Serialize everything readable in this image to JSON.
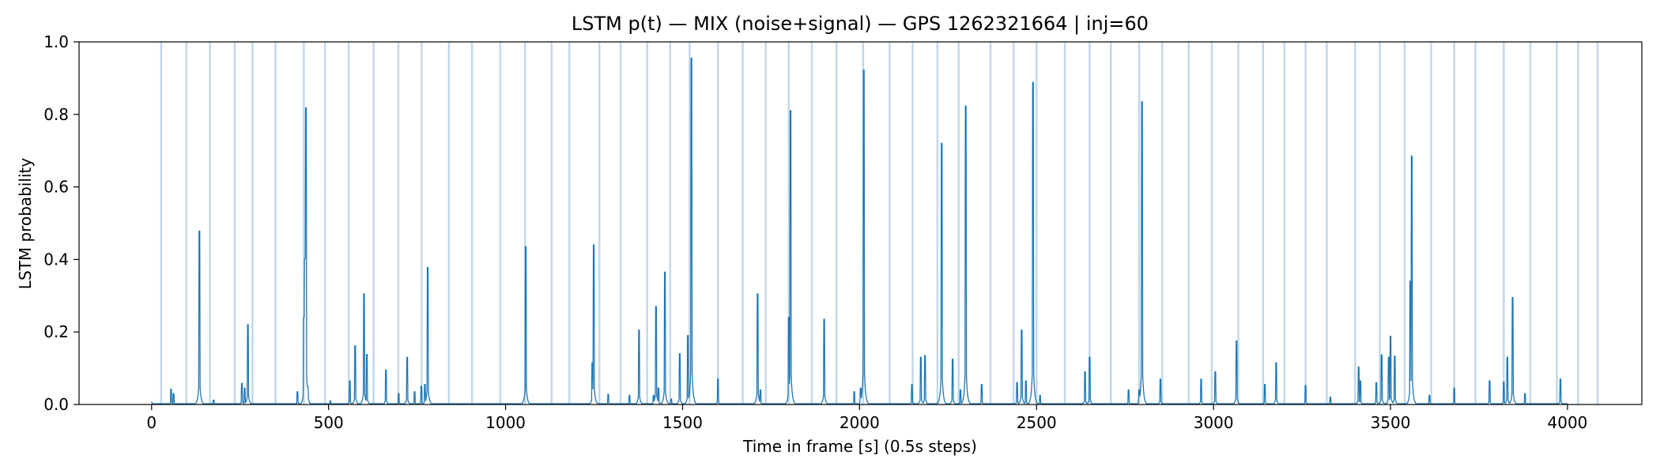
{
  "chart_data": {
    "type": "line",
    "title": "LSTM p(t) — MIX (noise+signal) — GPS 1262321664 | inj=60",
    "xlabel": "Time in frame [s] (0.5s steps)",
    "ylabel": "LSTM probability",
    "xlim": [
      -205,
      4210
    ],
    "ylim": [
      0,
      1.0
    ],
    "x_ticks": [
      "0",
      "500",
      "1000",
      "1500",
      "2000",
      "2500",
      "3000",
      "3500",
      "4000"
    ],
    "y_ticks": [
      "0.0",
      "0.2",
      "0.4",
      "0.6",
      "0.8",
      "1.0"
    ],
    "grid": false,
    "legend": "none",
    "series_color": "#1f77b4",
    "marker_color": "#aecbe6",
    "baseline": 0.002,
    "injection_times": [
      27,
      98,
      165,
      235,
      285,
      350,
      430,
      490,
      557,
      627,
      697,
      763,
      840,
      905,
      985,
      1055,
      1130,
      1180,
      1265,
      1325,
      1400,
      1465,
      1520,
      1600,
      1670,
      1735,
      1800,
      1865,
      1935,
      2010,
      2085,
      2150,
      2220,
      2280,
      2370,
      2435,
      2500,
      2580,
      2650,
      2710,
      2790,
      2855,
      2930,
      2995,
      3070,
      3140,
      3200,
      3260,
      3320,
      3400,
      3470,
      3540,
      3615,
      3680,
      3740,
      3820,
      3895,
      3970,
      4030,
      4085
    ],
    "peaks": [
      [
        0,
        0.006
      ],
      [
        55,
        0.042
      ],
      [
        62,
        0.03
      ],
      [
        175,
        0.012
      ],
      [
        135,
        0.478
      ],
      [
        255,
        0.058
      ],
      [
        263,
        0.045
      ],
      [
        272,
        0.22
      ],
      [
        412,
        0.035
      ],
      [
        430,
        0.24
      ],
      [
        433,
        0.402
      ],
      [
        436,
        0.818
      ],
      [
        441,
        0.05
      ],
      [
        505,
        0.01
      ],
      [
        560,
        0.065
      ],
      [
        575,
        0.162
      ],
      [
        600,
        0.305
      ],
      [
        608,
        0.138
      ],
      [
        662,
        0.095
      ],
      [
        698,
        0.03
      ],
      [
        722,
        0.13
      ],
      [
        743,
        0.035
      ],
      [
        762,
        0.05
      ],
      [
        772,
        0.055
      ],
      [
        780,
        0.378
      ],
      [
        1057,
        0.435
      ],
      [
        1245,
        0.115
      ],
      [
        1249,
        0.44
      ],
      [
        1290,
        0.028
      ],
      [
        1350,
        0.025
      ],
      [
        1377,
        0.205
      ],
      [
        1418,
        0.025
      ],
      [
        1425,
        0.27
      ],
      [
        1432,
        0.045
      ],
      [
        1450,
        0.365
      ],
      [
        1468,
        0.015
      ],
      [
        1492,
        0.14
      ],
      [
        1515,
        0.19
      ],
      [
        1525,
        0.955
      ],
      [
        1600,
        0.07
      ],
      [
        1712,
        0.305
      ],
      [
        1720,
        0.04
      ],
      [
        1800,
        0.24
      ],
      [
        1805,
        0.81
      ],
      [
        1900,
        0.235
      ],
      [
        1985,
        0.035
      ],
      [
        2003,
        0.045
      ],
      [
        2012,
        0.922
      ],
      [
        2148,
        0.055
      ],
      [
        2173,
        0.13
      ],
      [
        2185,
        0.135
      ],
      [
        2232,
        0.72
      ],
      [
        2263,
        0.125
      ],
      [
        2285,
        0.04
      ],
      [
        2300,
        0.823
      ],
      [
        2345,
        0.055
      ],
      [
        2445,
        0.06
      ],
      [
        2458,
        0.205
      ],
      [
        2470,
        0.065
      ],
      [
        2490,
        0.888
      ],
      [
        2510,
        0.025
      ],
      [
        2637,
        0.09
      ],
      [
        2650,
        0.13
      ],
      [
        2760,
        0.04
      ],
      [
        2790,
        0.04
      ],
      [
        2798,
        0.835
      ],
      [
        2850,
        0.07
      ],
      [
        2965,
        0.07
      ],
      [
        3005,
        0.09
      ],
      [
        3065,
        0.175
      ],
      [
        3145,
        0.055
      ],
      [
        3177,
        0.115
      ],
      [
        3260,
        0.052
      ],
      [
        3330,
        0.02
      ],
      [
        3410,
        0.103
      ],
      [
        3415,
        0.065
      ],
      [
        3460,
        0.06
      ],
      [
        3475,
        0.137
      ],
      [
        3495,
        0.13
      ],
      [
        3500,
        0.188
      ],
      [
        3512,
        0.133
      ],
      [
        3560,
        0.685
      ],
      [
        3556,
        0.34
      ],
      [
        3610,
        0.025
      ],
      [
        3680,
        0.045
      ],
      [
        3780,
        0.065
      ],
      [
        3820,
        0.062
      ],
      [
        3830,
        0.13
      ],
      [
        3845,
        0.295
      ],
      [
        3880,
        0.03
      ],
      [
        3980,
        0.07
      ]
    ]
  }
}
